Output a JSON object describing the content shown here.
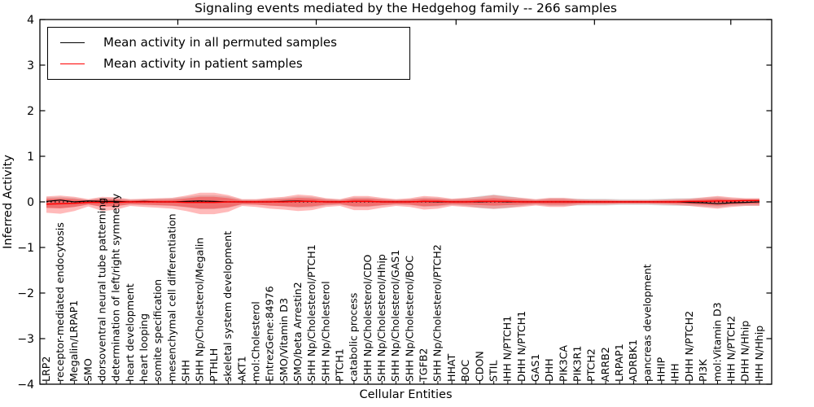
{
  "chart": {
    "title": "Signaling events mediated by the Hedgehog family -- 266 samples",
    "xlabel": "Cellular Entities",
    "ylabel": "Inferred Activity"
  },
  "legend": {
    "items": [
      {
        "label": "Mean activity in all permuted samples",
        "color": "#000000"
      },
      {
        "label": "Mean activity in patient samples",
        "color": "#ff0000"
      }
    ]
  },
  "colors": {
    "patient_line": "#ff0000",
    "permuted_line": "#000000",
    "patient_band": "#ff0000",
    "permuted_band": "#b0b0b0",
    "axes": "#000000",
    "background": "#ffffff"
  },
  "chart_data": {
    "type": "line",
    "title": "Signaling events mediated by the Hedgehog family -- 266 samples",
    "xlabel": "Cellular Entities",
    "ylabel": "Inferred Activity",
    "ylim": [
      -4,
      4
    ],
    "yticks": [
      4,
      3,
      2,
      1,
      0,
      -1,
      -2,
      -3,
      -4
    ],
    "ytick_labels": [
      "4",
      "3",
      "2",
      "1",
      "0",
      "−1",
      "−2",
      "−3",
      "−4"
    ],
    "grid": false,
    "legend_position": "upper left",
    "zero_line": true,
    "categories": [
      "LRP2",
      "receptor-mediated endocytosis",
      "Megalin/LRPAP1",
      "SMO",
      "dorsoventral neural tube patterning",
      "determination of left/right symmetry",
      "heart development",
      "heart looping",
      "somite specification",
      "mesenchymal cell differentiation",
      "SHH",
      "SHH Np/Cholesterol/Megalin",
      "PTHLH",
      "skeletal system development",
      "AKT1",
      "mol:Cholesterol",
      "EntrezGene:84976",
      "SMO/Vitamin D3",
      "SMO/beta Arrestin2",
      "SHH Np/Cholesterol/PTCH1",
      "SHH Np/Cholesterol",
      "PTCH1",
      "catabolic process",
      "SHH Np/Cholesterol/CDO",
      "SHH Np/Cholesterol/Hhip",
      "SHH Np/Cholesterol/GAS1",
      "SHH Np/Cholesterol/BOC",
      "TGFB2",
      "SHH Np/Cholesterol/PTCH2",
      "HHAT",
      "BOC",
      "CDON",
      "STIL",
      "IHH N/PTCH1",
      "DHH N/PTCH1",
      "GAS1",
      "DHH",
      "PIK3CA",
      "PIK3R1",
      "PTCH2",
      "ARRB2",
      "LRPAP1",
      "ADRBK1",
      "pancreas development",
      "HHIP",
      "IHH",
      "DHH N/PTCH2",
      "PI3K",
      "mol:Vitamin D3",
      "IHH N/PTCH2",
      "DHH N/Hhip",
      "IHH N/Hhip"
    ],
    "series": [
      {
        "name": "Mean activity in all permuted samples",
        "color": "#000000",
        "values": [
          0.01,
          0.04,
          0.0,
          0.02,
          0.01,
          0.01,
          0.0,
          0.01,
          0.0,
          0.0,
          0.01,
          0.02,
          0.01,
          0.0,
          0.0,
          0.0,
          0.0,
          0.01,
          0.02,
          0.01,
          0.0,
          0.0,
          0.01,
          0.01,
          0.0,
          0.0,
          0.0,
          0.01,
          0.0,
          0.0,
          0.0,
          0.0,
          0.01,
          0.0,
          0.0,
          0.0,
          0.0,
          0.0,
          0.0,
          0.0,
          0.0,
          0.0,
          0.0,
          0.0,
          0.0,
          0.0,
          -0.01,
          -0.02,
          -0.04,
          -0.02,
          -0.01,
          0.0
        ]
      },
      {
        "name": "Mean activity in patient samples",
        "color": "#ff0000",
        "values": [
          -0.05,
          -0.04,
          -0.03,
          -0.01,
          -0.01,
          -0.01,
          0.0,
          0.0,
          0.0,
          0.0,
          -0.01,
          -0.01,
          -0.01,
          0.0,
          0.0,
          0.0,
          0.0,
          0.0,
          0.01,
          0.01,
          0.0,
          0.0,
          0.01,
          0.01,
          0.0,
          0.0,
          0.0,
          0.01,
          0.01,
          0.0,
          0.0,
          0.01,
          0.01,
          0.01,
          0.0,
          0.0,
          0.0,
          0.0,
          0.0,
          0.0,
          0.0,
          0.0,
          0.0,
          0.0,
          0.0,
          0.0,
          0.01,
          0.01,
          0.02,
          0.02,
          0.03,
          0.03
        ]
      }
    ],
    "patient_std_band": {
      "upper": [
        0.12,
        0.14,
        0.11,
        0.06,
        0.11,
        0.1,
        0.06,
        0.07,
        0.08,
        0.09,
        0.14,
        0.2,
        0.2,
        0.15,
        0.06,
        0.06,
        0.09,
        0.11,
        0.16,
        0.14,
        0.08,
        0.06,
        0.13,
        0.13,
        0.09,
        0.06,
        0.08,
        0.13,
        0.11,
        0.07,
        0.09,
        0.11,
        0.15,
        0.11,
        0.09,
        0.06,
        0.09,
        0.09,
        0.06,
        0.05,
        0.05,
        0.04,
        0.04,
        0.04,
        0.05,
        0.06,
        0.07,
        0.1,
        0.13,
        0.1,
        0.08,
        0.08
      ],
      "lower": [
        -0.24,
        -0.26,
        -0.2,
        -0.1,
        -0.2,
        -0.17,
        -0.09,
        -0.11,
        -0.13,
        -0.15,
        -0.2,
        -0.27,
        -0.27,
        -0.22,
        -0.09,
        -0.11,
        -0.15,
        -0.17,
        -0.2,
        -0.18,
        -0.11,
        -0.09,
        -0.18,
        -0.18,
        -0.13,
        -0.09,
        -0.11,
        -0.17,
        -0.15,
        -0.09,
        -0.11,
        -0.13,
        -0.15,
        -0.13,
        -0.11,
        -0.08,
        -0.11,
        -0.11,
        -0.07,
        -0.06,
        -0.06,
        -0.05,
        -0.05,
        -0.05,
        -0.06,
        -0.07,
        -0.09,
        -0.12,
        -0.15,
        -0.11,
        -0.09,
        -0.09
      ],
      "inner_core_scale": 0.55
    },
    "permuted_std_band": {
      "upper": [
        0.1,
        0.11,
        0.09,
        0.05,
        0.09,
        0.08,
        0.05,
        0.06,
        0.07,
        0.08,
        0.11,
        0.15,
        0.15,
        0.12,
        0.05,
        0.05,
        0.07,
        0.09,
        0.12,
        0.11,
        0.07,
        0.05,
        0.1,
        0.1,
        0.07,
        0.05,
        0.06,
        0.1,
        0.09,
        0.06,
        0.08,
        0.13,
        0.16,
        0.13,
        0.08,
        0.05,
        0.08,
        0.08,
        0.07,
        0.07,
        0.07,
        0.06,
        0.06,
        0.06,
        0.07,
        0.08,
        0.08,
        0.09,
        0.11,
        0.08,
        0.07,
        0.07
      ],
      "lower": [
        -0.13,
        -0.14,
        -0.11,
        -0.06,
        -0.1,
        -0.09,
        -0.06,
        -0.07,
        -0.08,
        -0.09,
        -0.12,
        -0.16,
        -0.16,
        -0.13,
        -0.06,
        -0.06,
        -0.08,
        -0.1,
        -0.13,
        -0.12,
        -0.08,
        -0.06,
        -0.11,
        -0.11,
        -0.08,
        -0.06,
        -0.07,
        -0.11,
        -0.1,
        -0.07,
        -0.09,
        -0.14,
        -0.16,
        -0.14,
        -0.09,
        -0.06,
        -0.09,
        -0.09,
        -0.08,
        -0.08,
        -0.08,
        -0.07,
        -0.07,
        -0.07,
        -0.08,
        -0.09,
        -0.09,
        -0.1,
        -0.12,
        -0.09,
        -0.08,
        -0.08
      ]
    }
  }
}
